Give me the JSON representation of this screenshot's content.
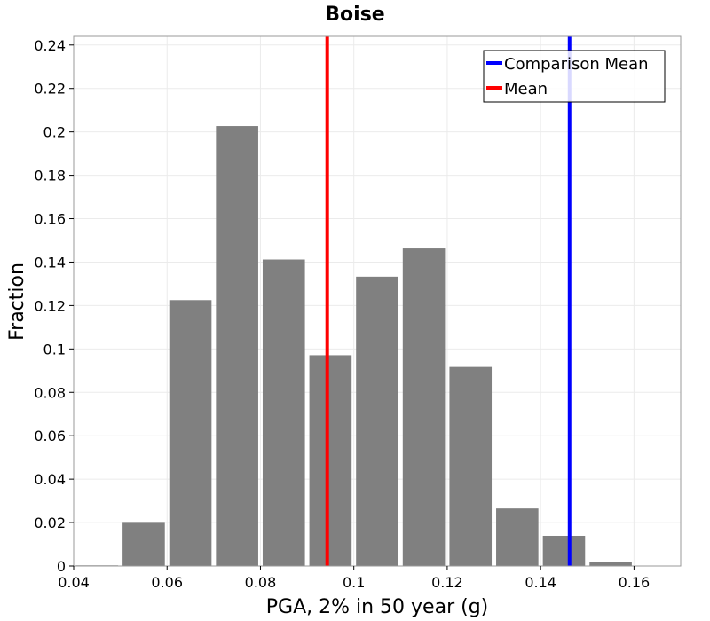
{
  "chart_data": {
    "type": "bar",
    "title": "Boise",
    "xlabel": "PGA, 2% in 50 year (g)",
    "ylabel": "Fraction",
    "xlim": [
      0.04,
      0.17
    ],
    "ylim": [
      0,
      0.244
    ],
    "grid": true,
    "legend_placement": "top-right",
    "bin_width": 0.01,
    "bins": [
      {
        "x": 0.045,
        "value": 0.0003
      },
      {
        "x": 0.055,
        "value": 0.0203
      },
      {
        "x": 0.065,
        "value": 0.1225
      },
      {
        "x": 0.075,
        "value": 0.2027
      },
      {
        "x": 0.085,
        "value": 0.1412
      },
      {
        "x": 0.095,
        "value": 0.0971
      },
      {
        "x": 0.105,
        "value": 0.1333
      },
      {
        "x": 0.115,
        "value": 0.1463
      },
      {
        "x": 0.125,
        "value": 0.0917
      },
      {
        "x": 0.135,
        "value": 0.0265
      },
      {
        "x": 0.145,
        "value": 0.0139
      },
      {
        "x": 0.155,
        "value": 0.0018
      },
      {
        "x": 0.165,
        "value": 0.0001
      }
    ],
    "xticks": [
      {
        "value": 0.04,
        "label": "0.04"
      },
      {
        "value": 0.06,
        "label": "0.06"
      },
      {
        "value": 0.08,
        "label": "0.08"
      },
      {
        "value": 0.1,
        "label": "0.1"
      },
      {
        "value": 0.12,
        "label": "0.12"
      },
      {
        "value": 0.14,
        "label": "0.14"
      },
      {
        "value": 0.16,
        "label": "0.16"
      }
    ],
    "yticks": [
      {
        "value": 0,
        "label": "0"
      },
      {
        "value": 0.02,
        "label": "0.02"
      },
      {
        "value": 0.04,
        "label": "0.04"
      },
      {
        "value": 0.06,
        "label": "0.06"
      },
      {
        "value": 0.08,
        "label": "0.08"
      },
      {
        "value": 0.1,
        "label": "0.1"
      },
      {
        "value": 0.12,
        "label": "0.12"
      },
      {
        "value": 0.14,
        "label": "0.14"
      },
      {
        "value": 0.16,
        "label": "0.16"
      },
      {
        "value": 0.18,
        "label": "0.18"
      },
      {
        "value": 0.2,
        "label": "0.2"
      },
      {
        "value": 0.22,
        "label": "0.22"
      },
      {
        "value": 0.24,
        "label": "0.24"
      }
    ],
    "lines": [
      {
        "name": "Comparison Mean",
        "x": 0.1462,
        "color": "#0000ff"
      },
      {
        "name": "Mean",
        "x": 0.0943,
        "color": "#ff0000"
      }
    ],
    "colors": {
      "bar": "#808080",
      "grid": "#ebebeb",
      "axis": "#999999"
    }
  }
}
